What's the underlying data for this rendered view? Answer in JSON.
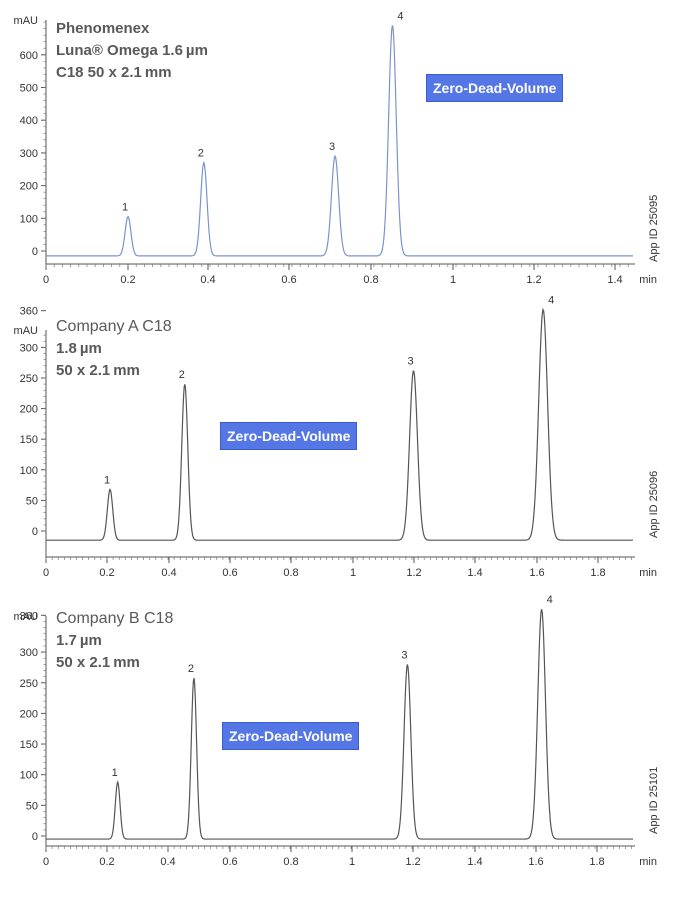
{
  "chart_data": [
    {
      "type": "line",
      "title_lines": [
        "Phenomenex",
        "Luna® Omega 1.6 µm",
        "C18 50 x 2.1 mm"
      ],
      "badge": "Zero-Dead-Volume",
      "app_id": "App ID 25095",
      "ylabel": "mAU",
      "xlabel": "min",
      "xlim": [
        0,
        1.5
      ],
      "ylim": [
        -20,
        700
      ],
      "x_ticks": [
        "0",
        "0.2",
        "0.4",
        "0.6",
        "0.8",
        "1",
        "1.2",
        "1.4"
      ],
      "y_ticks": [
        "0",
        "100",
        "200",
        "300",
        "400",
        "500",
        "600"
      ],
      "line_color": "#7a93cf",
      "baseline": -15,
      "peaks": [
        {
          "label": "1",
          "x": 0.2,
          "height": 105
        },
        {
          "label": "2",
          "x": 0.385,
          "height": 270
        },
        {
          "label": "3",
          "x": 0.705,
          "height": 290
        },
        {
          "label": "4",
          "x": 0.845,
          "height": 690
        }
      ]
    },
    {
      "type": "line",
      "title_lines": [
        "Company A C18",
        "1.8 µm",
        "50 x 2.1 mm"
      ],
      "badge": "Zero-Dead-Volume",
      "app_id": "App ID 25096",
      "ylabel": "mAU",
      "xlabel": "min",
      "xlim": [
        0,
        1.95
      ],
      "ylim": [
        -25,
        380
      ],
      "x_ticks": [
        "0",
        "0.2",
        "0.4",
        "0.6",
        "0.8",
        "1",
        "1.2",
        "1.4",
        "1.6",
        "1.8"
      ],
      "y_ticks": [
        "0",
        "50",
        "100",
        "150",
        "200",
        "250",
        "300",
        "360"
      ],
      "line_color": "#555555",
      "baseline": -15,
      "peaks": [
        {
          "label": "1",
          "x": 0.21,
          "height": 68
        },
        {
          "label": "2",
          "x": 0.455,
          "height": 240
        },
        {
          "label": "3",
          "x": 1.205,
          "height": 262
        },
        {
          "label": "4",
          "x": 1.63,
          "height": 362
        }
      ]
    },
    {
      "type": "line",
      "title_lines": [
        "Company B C18",
        "1.7 µm",
        "50 x 2.1 mm"
      ],
      "badge": "Zero-Dead-Volume",
      "app_id": "App ID 25101",
      "ylabel": "mAU",
      "xlabel": "min",
      "xlim": [
        0,
        1.95
      ],
      "ylim": [
        -10,
        380
      ],
      "x_ticks": [
        "0",
        "0.2",
        "0.4",
        "0.6",
        "0.8",
        "1",
        "1.2",
        "1.4",
        "1.6",
        "1.8"
      ],
      "y_ticks": [
        "0",
        "50",
        "100",
        "150",
        "200",
        "250",
        "300",
        "360"
      ],
      "line_color": "#555555",
      "baseline": -5,
      "peaks": [
        {
          "label": "1",
          "x": 0.235,
          "height": 88
        },
        {
          "label": "2",
          "x": 0.485,
          "height": 258
        },
        {
          "label": "3",
          "x": 1.185,
          "height": 280
        },
        {
          "label": "4",
          "x": 1.625,
          "height": 370
        }
      ]
    }
  ]
}
